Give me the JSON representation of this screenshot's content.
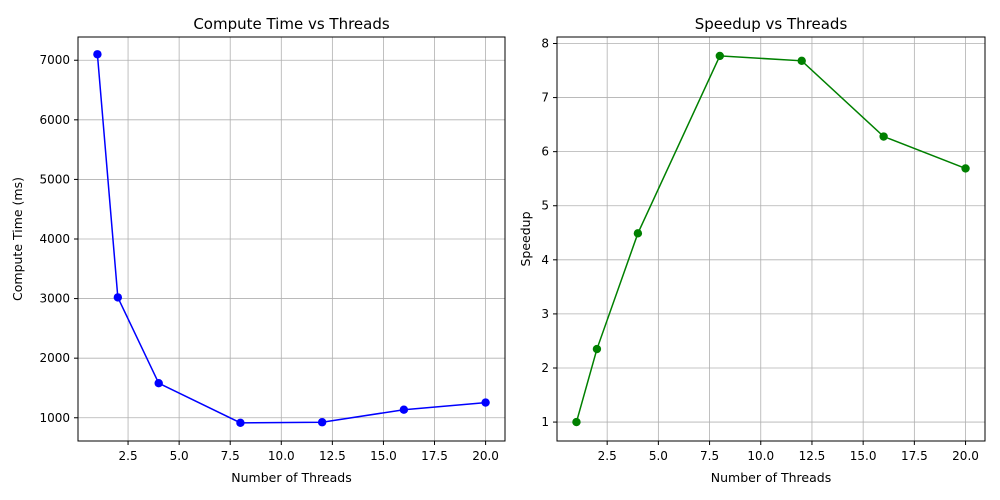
{
  "chart_data": [
    {
      "type": "line",
      "title": "Compute Time vs Threads",
      "xlabel": "Number of Threads",
      "ylabel": "Compute Time (ms)",
      "xlim": [
        0.05,
        20.95
      ],
      "ylim": [
        610,
        7390
      ],
      "xticks": [
        2.5,
        5.0,
        7.5,
        10.0,
        12.5,
        15.0,
        17.5,
        20.0
      ],
      "xtick_labels": [
        "2.5",
        "5.0",
        "7.5",
        "10.0",
        "12.5",
        "15.0",
        "17.5",
        "20.0"
      ],
      "yticks": [
        1000,
        2000,
        3000,
        4000,
        5000,
        6000,
        7000
      ],
      "ytick_labels": [
        "1000",
        "2000",
        "3000",
        "4000",
        "5000",
        "6000",
        "7000"
      ],
      "grid": true,
      "series": [
        {
          "color": "#0000ff",
          "marker": "circle",
          "x": [
            1,
            2,
            4,
            8,
            12,
            16,
            20
          ],
          "y": [
            7100,
            3020,
            1580,
            915,
            925,
            1135,
            1255
          ]
        }
      ]
    },
    {
      "type": "line",
      "title": "Speedup vs Threads",
      "xlabel": "Number of Threads",
      "ylabel": "Speedup",
      "xlim": [
        0.05,
        20.95
      ],
      "ylim": [
        0.65,
        8.12
      ],
      "xticks": [
        2.5,
        5.0,
        7.5,
        10.0,
        12.5,
        15.0,
        17.5,
        20.0
      ],
      "xtick_labels": [
        "2.5",
        "5.0",
        "7.5",
        "10.0",
        "12.5",
        "15.0",
        "17.5",
        "20.0"
      ],
      "yticks": [
        1,
        2,
        3,
        4,
        5,
        6,
        7,
        8
      ],
      "ytick_labels": [
        "1",
        "2",
        "3",
        "4",
        "5",
        "6",
        "7",
        "8"
      ],
      "grid": true,
      "series": [
        {
          "color": "#008000",
          "marker": "circle",
          "x": [
            1,
            2,
            4,
            8,
            12,
            16,
            20
          ],
          "y": [
            1.0,
            2.35,
            4.49,
            7.77,
            7.68,
            6.28,
            5.69
          ]
        }
      ]
    }
  ]
}
